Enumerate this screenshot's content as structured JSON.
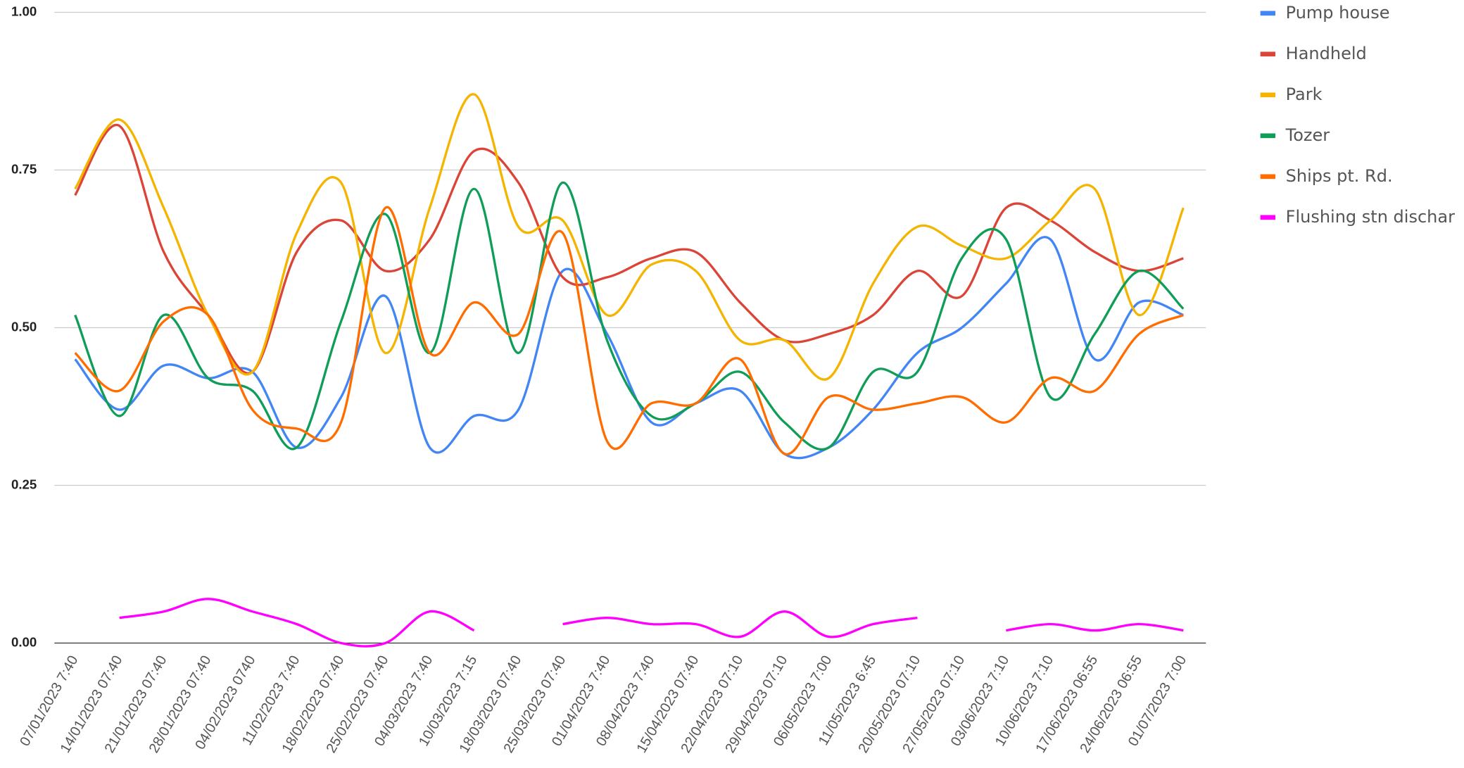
{
  "chart_data": {
    "type": "line",
    "smooth": true,
    "grid": true,
    "legend": "right",
    "categories": [
      "07/01/2023 7:40",
      "14/01/2023 07:40",
      "21/01/2023 07:40",
      "28/01/2023 07:40",
      "04/02/2023 0740",
      "11/02/2023 7:40",
      "18/02/2023 07:40",
      "25/02/2023 07:40",
      "04/03/2023 7:40",
      "10/03/2023 7:15",
      "18/03/2023 07:40",
      "25/03/2023 07:40",
      "01/04/2023 7:40",
      "08/04/2023 7:40",
      "15/04/2023 07:40",
      "22/04/2023 07:10",
      "29/04/2023 07:10",
      "06/05/2023 7:00",
      "11/05/2023 6:45",
      "20/05/2023 07:10",
      "27/05/2023 07:10",
      "03/06/2023 7:10",
      "10/06/2023 7:10",
      "17/06/2023 06:55",
      "24/06/2023 06:55",
      "01/07/2023 7:00"
    ],
    "ylim": [
      0,
      1
    ],
    "yticks": [
      {
        "value": 0,
        "label": "0.00"
      },
      {
        "value": 0.25,
        "label": "0.25"
      },
      {
        "value": 0.5,
        "label": "0.50"
      },
      {
        "value": 0.75,
        "label": "0.75"
      },
      {
        "value": 1,
        "label": "1.00"
      }
    ],
    "series": [
      {
        "name": "Pump house",
        "color": "#4285f4",
        "values": [
          0.45,
          0.37,
          0.44,
          0.42,
          0.43,
          0.31,
          0.39,
          0.55,
          0.31,
          0.36,
          0.37,
          0.59,
          0.49,
          0.35,
          0.38,
          0.4,
          0.3,
          0.31,
          0.37,
          0.46,
          0.5,
          0.57,
          0.64,
          0.45,
          0.54,
          0.52
        ]
      },
      {
        "name": "Handheld",
        "color": "#db4437",
        "values": [
          0.71,
          0.82,
          0.62,
          0.52,
          0.43,
          0.62,
          0.67,
          0.59,
          0.64,
          0.78,
          0.73,
          0.58,
          0.58,
          0.61,
          0.62,
          0.54,
          0.48,
          0.49,
          0.52,
          0.59,
          0.55,
          0.69,
          0.67,
          0.62,
          0.59,
          0.61
        ]
      },
      {
        "name": "Park",
        "color": "#f4b400",
        "values": [
          0.72,
          0.83,
          0.69,
          0.52,
          0.43,
          0.65,
          0.73,
          0.46,
          0.69,
          0.87,
          0.66,
          0.67,
          0.52,
          0.6,
          0.59,
          0.48,
          0.48,
          0.42,
          0.57,
          0.66,
          0.63,
          0.61,
          0.67,
          0.72,
          0.52,
          0.69
        ]
      },
      {
        "name": "Tozer",
        "color": "#0f9d58",
        "values": [
          0.52,
          0.36,
          0.52,
          0.42,
          0.4,
          0.31,
          0.51,
          0.68,
          0.46,
          0.72,
          0.46,
          0.73,
          0.48,
          0.36,
          0.38,
          0.43,
          0.35,
          0.31,
          0.43,
          0.43,
          0.61,
          0.64,
          0.39,
          0.49,
          0.59,
          0.53
        ]
      },
      {
        "name": "Ships pt. Rd.",
        "color": "#ff6d01",
        "values": [
          0.46,
          0.4,
          0.51,
          0.52,
          0.37,
          0.34,
          0.35,
          0.69,
          0.46,
          0.54,
          0.49,
          0.65,
          0.32,
          0.38,
          0.38,
          0.45,
          0.3,
          0.39,
          0.37,
          0.38,
          0.39,
          0.35,
          0.42,
          0.4,
          0.49,
          0.52
        ]
      },
      {
        "name": " Flushing stn dischar",
        "color": "#ff00ff",
        "values": [
          null,
          0.04,
          0.05,
          0.07,
          0.05,
          0.03,
          0,
          0,
          0.05,
          0.02,
          null,
          0.03,
          0.04,
          0.03,
          0.03,
          0.01,
          0.05,
          0.01,
          0.03,
          0.04,
          null,
          0.02,
          0.03,
          0.02,
          0.03,
          0.02
        ]
      }
    ]
  }
}
